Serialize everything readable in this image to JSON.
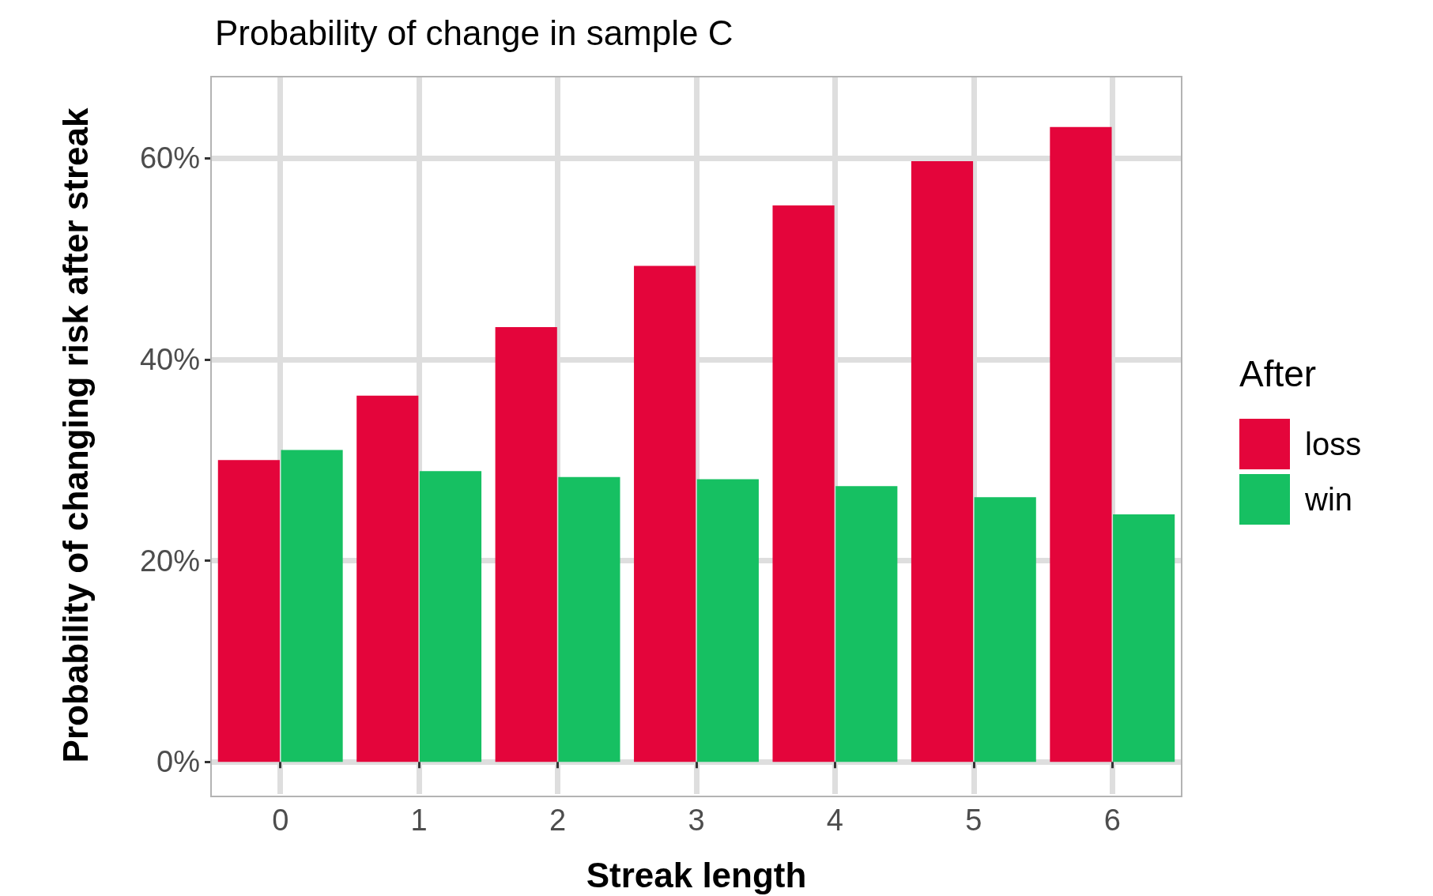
{
  "chart_data": {
    "type": "bar",
    "title": "Probability of change in sample C",
    "xlabel": "Streak length",
    "ylabel": "Probability of changing risk after streak",
    "legend_title": "After",
    "categories": [
      "0",
      "1",
      "2",
      "3",
      "4",
      "5",
      "6"
    ],
    "series": [
      {
        "name": "loss",
        "color": "#e4053b",
        "values": [
          30.0,
          36.4,
          43.2,
          49.3,
          55.3,
          59.7,
          63.1
        ]
      },
      {
        "name": "win",
        "color": "#16c062",
        "values": [
          31.0,
          28.9,
          28.3,
          28.1,
          27.4,
          26.3,
          24.6
        ]
      }
    ],
    "ylim": [
      -3.2,
      68.1
    ],
    "yticks": [
      {
        "value": 0,
        "label": "0%"
      },
      {
        "value": 20,
        "label": "20%"
      },
      {
        "value": 40,
        "label": "40%"
      },
      {
        "value": 60,
        "label": "60%"
      }
    ],
    "grid": true,
    "legend": "right"
  }
}
